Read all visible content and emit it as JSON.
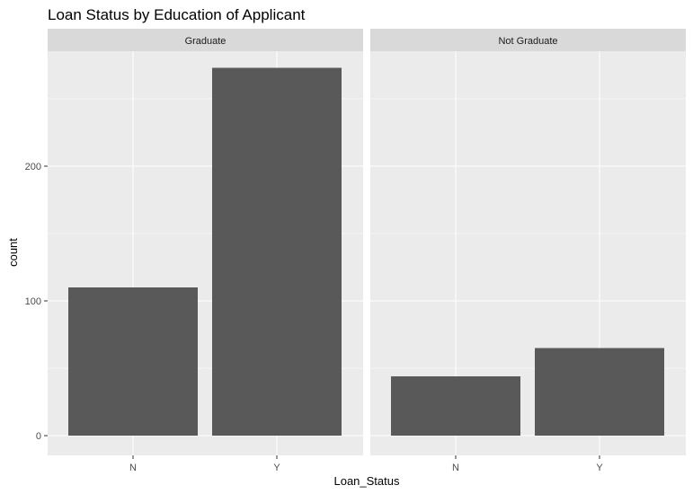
{
  "chart_data": {
    "type": "bar",
    "title": "Loan Status by Education of Applicant",
    "xlabel": "Loan_Status",
    "ylabel": "count",
    "categories": [
      "N",
      "Y"
    ],
    "ylim": [
      0,
      290
    ],
    "yticks": [
      0,
      100,
      200
    ],
    "grid": true,
    "bar_color": "#595959",
    "panel_background": "#ebebeb",
    "strip_background": "#d9d9d9",
    "facets": [
      {
        "label": "Graduate",
        "values": [
          110,
          273
        ]
      },
      {
        "label": "Not Graduate",
        "values": [
          44,
          65
        ]
      }
    ]
  }
}
